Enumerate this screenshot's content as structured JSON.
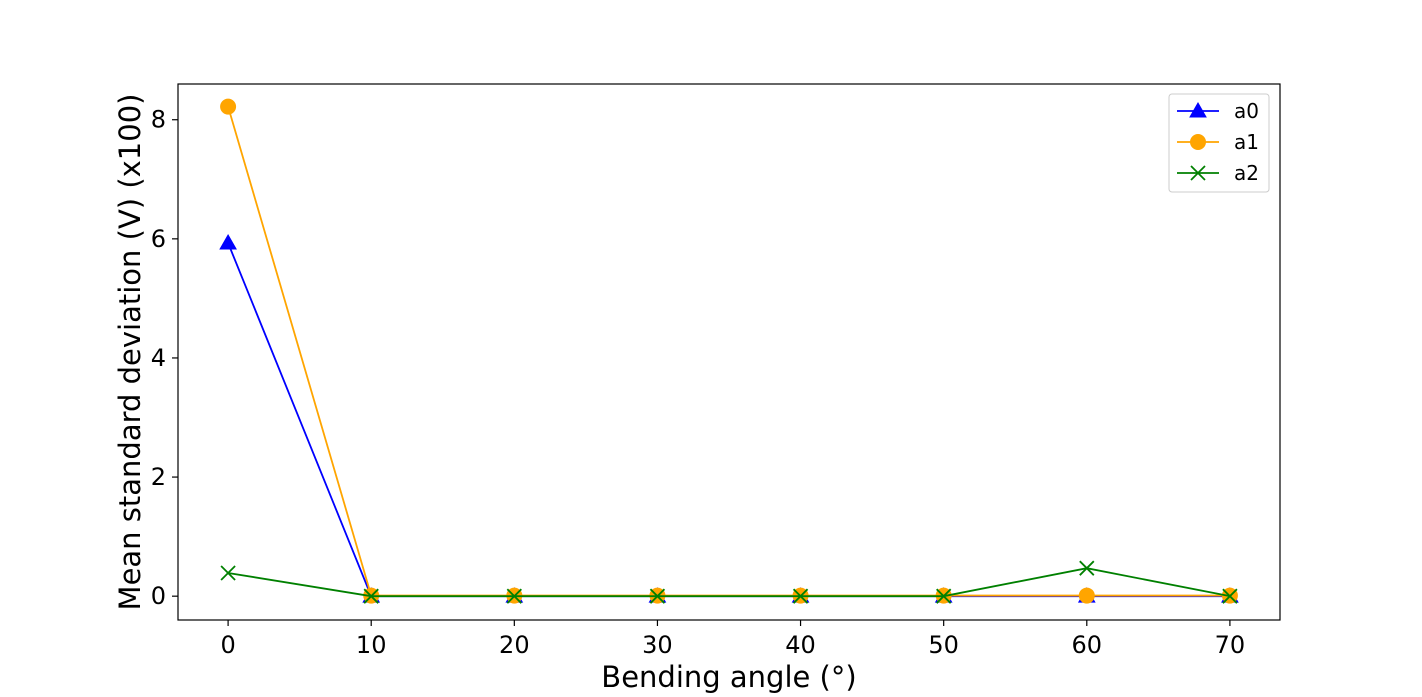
{
  "chart_data": {
    "type": "line",
    "xlabel": "Bending angle (°)",
    "ylabel": "Mean standard deviation (V) (x100)",
    "x": [
      0,
      10,
      20,
      30,
      40,
      50,
      60,
      70
    ],
    "xlim": [
      -3.5,
      73.5
    ],
    "ylim": [
      -0.4,
      8.6
    ],
    "xticks": [
      0,
      10,
      20,
      30,
      40,
      50,
      60,
      70
    ],
    "yticks": [
      0,
      2,
      4,
      6,
      8
    ],
    "grid": false,
    "legend_position": "top-right",
    "series": [
      {
        "name": "a0",
        "color": "#0000ff",
        "marker": "triangle",
        "values": [
          5.93,
          0.0,
          0.0,
          0.0,
          0.0,
          0.0,
          0.0,
          0.0
        ]
      },
      {
        "name": "a1",
        "color": "#ffa500",
        "marker": "circle",
        "values": [
          8.22,
          0.01,
          0.01,
          0.01,
          0.01,
          0.01,
          0.01,
          0.01
        ]
      },
      {
        "name": "a2",
        "color": "#008000",
        "marker": "x",
        "values": [
          0.39,
          0.0,
          0.0,
          0.0,
          0.0,
          0.0,
          0.47,
          0.0
        ]
      }
    ]
  }
}
